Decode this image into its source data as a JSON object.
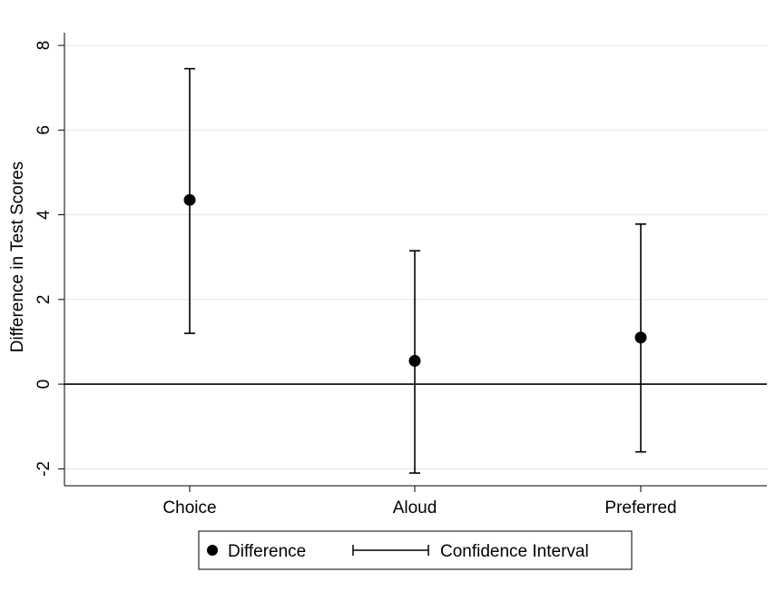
{
  "chart_data": {
    "type": "scatter",
    "categories": [
      "Choice",
      "Aloud",
      "Preferred"
    ],
    "series": [
      {
        "name": "Difference",
        "values": [
          4.35,
          0.55,
          1.1
        ]
      }
    ],
    "confidence_intervals": {
      "name": "Confidence Interval",
      "lower": [
        1.2,
        -2.1,
        -1.6
      ],
      "upper": [
        7.45,
        3.15,
        3.78
      ]
    },
    "ylabel": "Difference in Test Scores",
    "xlabel": "",
    "ylim": [
      -2.4,
      8.3
    ],
    "yticks": [
      -2,
      0,
      2,
      4,
      6,
      8
    ],
    "ytick_labels": [
      "-2",
      "0",
      "2",
      "4",
      "6",
      "8"
    ],
    "reference_line": 0,
    "grid": true,
    "legend": {
      "position": "bottom",
      "entries": [
        "Difference",
        "Confidence Interval"
      ]
    },
    "colors": {
      "marker": "#000000",
      "grid": "#e3ecf0",
      "axis": "#000000"
    }
  }
}
